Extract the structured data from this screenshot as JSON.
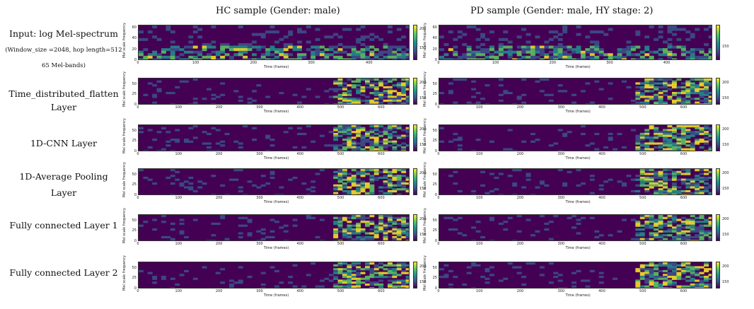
{
  "headers": {
    "hc": "HC sample (Gender: male)",
    "pd": "PD sample (Gender: male, HY stage: 2)"
  },
  "row_labels": {
    "input_title": "Input: log Mel-spectrum",
    "input_params": "(Window_size =2048, hop length=512",
    "input_bands": "65 Mel-bands)",
    "tdf_line1": "Time_distributed_flatten",
    "tdf_line2": "Layer",
    "cnn": "1D-CNN Layer",
    "pool_line1": "1D-Average Pooling",
    "pool_line2": "Layer",
    "fc1": "Fully connected Layer 1",
    "fc2": "Fully connected Layer 2"
  },
  "colormap": [
    "#440154",
    "#3b528b",
    "#21918c",
    "#5ec962",
    "#fde725"
  ],
  "chart_data": [
    {
      "type": "heatmap",
      "row": "input",
      "sample": "HC",
      "xlabel": "Time (frames)",
      "ylabel": "Mel scale frequency",
      "xlim": [
        0,
        470
      ],
      "xticks": [
        0,
        100,
        200,
        300,
        400
      ],
      "ylim": [
        0,
        65
      ],
      "yticks": [
        0,
        20,
        40,
        60
      ],
      "colorbar_ticks": [
        150,
        200
      ],
      "colorbar_range": [
        120,
        210
      ]
    },
    {
      "type": "heatmap",
      "row": "input",
      "sample": "PD",
      "xlabel": "Time (frames)",
      "ylabel": "Mel scale frequency",
      "xlim": [
        0,
        480
      ],
      "xticks": [
        0,
        100,
        200,
        300,
        400
      ],
      "ylim": [
        0,
        65
      ],
      "yticks": [
        0,
        20,
        40,
        60
      ],
      "colorbar_ticks": [
        150
      ],
      "colorbar_range": [
        120,
        200
      ]
    },
    {
      "type": "heatmap",
      "row": "tdf",
      "sample": "HC",
      "xlabel": "Time (frames)",
      "ylabel": "Mel scale frequency",
      "xlim": [
        0,
        670
      ],
      "xticks": [
        0,
        100,
        200,
        300,
        400,
        500,
        600
      ],
      "ylim": [
        0,
        65
      ],
      "yticks": [
        0,
        25,
        50
      ],
      "colorbar_ticks": [
        150,
        200
      ],
      "colorbar_range": [
        130,
        215
      ]
    },
    {
      "type": "heatmap",
      "row": "tdf",
      "sample": "PD",
      "xlabel": "Time (frames)",
      "ylabel": "Mel scale frequency",
      "xlim": [
        0,
        670
      ],
      "xticks": [
        0,
        100,
        200,
        300,
        400,
        500,
        600
      ],
      "ylim": [
        0,
        65
      ],
      "yticks": [
        0,
        25,
        50
      ],
      "colorbar_ticks": [
        150,
        200
      ],
      "colorbar_range": [
        130,
        215
      ]
    },
    {
      "type": "heatmap",
      "row": "cnn",
      "sample": "HC",
      "xlabel": "Time (frames)",
      "ylabel": "Mel scale frequency",
      "xlim": [
        0,
        670
      ],
      "xticks": [
        0,
        100,
        200,
        300,
        400,
        500,
        600
      ],
      "ylim": [
        0,
        65
      ],
      "yticks": [
        0,
        25,
        50
      ],
      "colorbar_ticks": [
        150,
        200
      ],
      "colorbar_range": [
        130,
        215
      ]
    },
    {
      "type": "heatmap",
      "row": "cnn",
      "sample": "PD",
      "xlabel": "Time (frames)",
      "ylabel": "Mel scale frequency",
      "xlim": [
        0,
        670
      ],
      "xticks": [
        0,
        100,
        200,
        300,
        400,
        500,
        600
      ],
      "ylim": [
        0,
        65
      ],
      "yticks": [
        0,
        25,
        50
      ],
      "colorbar_ticks": [
        150,
        200
      ],
      "colorbar_range": [
        130,
        215
      ]
    },
    {
      "type": "heatmap",
      "row": "pool",
      "sample": "HC",
      "xlabel": "Time (frames)",
      "ylabel": "Mel scale frequency",
      "xlim": [
        0,
        670
      ],
      "xticks": [
        0,
        100,
        200,
        300,
        400,
        500,
        600
      ],
      "ylim": [
        0,
        65
      ],
      "yticks": [
        0,
        25,
        50
      ],
      "colorbar_ticks": [
        150,
        200
      ],
      "colorbar_range": [
        130,
        215
      ]
    },
    {
      "type": "heatmap",
      "row": "pool",
      "sample": "PD",
      "xlabel": "Time (frames)",
      "ylabel": "Mel scale frequency",
      "xlim": [
        0,
        670
      ],
      "xticks": [
        0,
        100,
        200,
        300,
        400,
        500,
        600
      ],
      "ylim": [
        0,
        65
      ],
      "yticks": [
        0,
        25,
        50
      ],
      "colorbar_ticks": [
        150,
        200
      ],
      "colorbar_range": [
        130,
        215
      ]
    },
    {
      "type": "heatmap",
      "row": "fc1",
      "sample": "HC",
      "xlabel": "Time (frames)",
      "ylabel": "Mel scale frequency",
      "xlim": [
        0,
        670
      ],
      "xticks": [
        0,
        100,
        200,
        300,
        400,
        500,
        600
      ],
      "ylim": [
        0,
        65
      ],
      "yticks": [
        0,
        25,
        50
      ],
      "colorbar_ticks": [
        150,
        200
      ],
      "colorbar_range": [
        130,
        215
      ]
    },
    {
      "type": "heatmap",
      "row": "fc1",
      "sample": "PD",
      "xlabel": "Time (frames)",
      "ylabel": "Mel scale frequency",
      "xlim": [
        0,
        670
      ],
      "xticks": [
        0,
        100,
        200,
        300,
        400,
        500,
        600
      ],
      "ylim": [
        0,
        65
      ],
      "yticks": [
        0,
        25,
        50
      ],
      "colorbar_ticks": [
        150,
        200
      ],
      "colorbar_range": [
        130,
        215
      ]
    },
    {
      "type": "heatmap",
      "row": "fc2",
      "sample": "HC",
      "xlabel": "Time (frames)",
      "ylabel": "Mel scale frequency",
      "xlim": [
        0,
        670
      ],
      "xticks": [
        0,
        100,
        200,
        300,
        400,
        500,
        600
      ],
      "ylim": [
        0,
        65
      ],
      "yticks": [
        0,
        25,
        50
      ],
      "colorbar_ticks": [
        150,
        200
      ],
      "colorbar_range": [
        130,
        215
      ]
    },
    {
      "type": "heatmap",
      "row": "fc2",
      "sample": "PD",
      "xlabel": "Time (frames)",
      "ylabel": "Mel scale frequency",
      "xlim": [
        0,
        670
      ],
      "xticks": [
        0,
        100,
        200,
        300,
        400,
        500,
        600
      ],
      "ylim": [
        0,
        65
      ],
      "yticks": [
        0,
        25,
        50
      ],
      "colorbar_ticks": [
        150,
        200
      ],
      "colorbar_range": [
        130,
        215
      ]
    }
  ]
}
